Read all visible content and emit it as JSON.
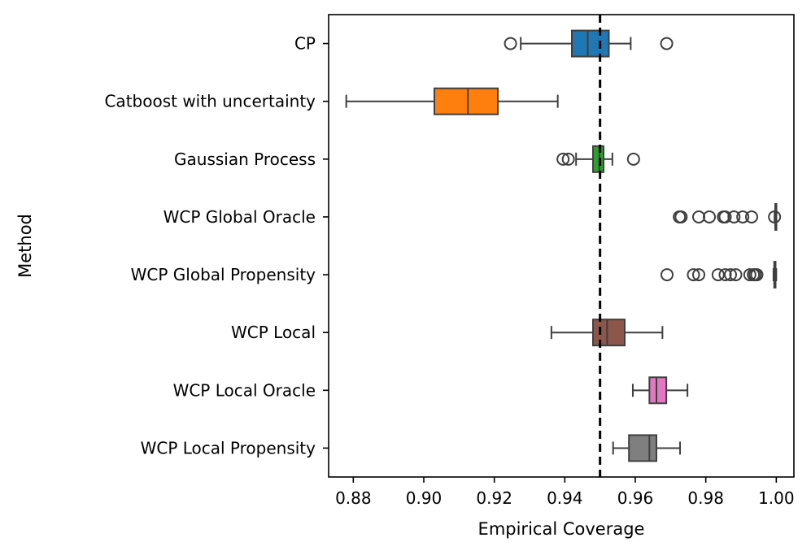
{
  "chart_data": {
    "type": "boxplot",
    "orientation": "horizontal",
    "xlabel": "Empirical Coverage",
    "ylabel": "Method",
    "xlim": [
      0.873,
      1.005
    ],
    "xticks": [
      0.88,
      0.9,
      0.92,
      0.94,
      0.96,
      0.98,
      1.0
    ],
    "xtick_labels": [
      "0.88",
      "0.90",
      "0.92",
      "0.94",
      "0.96",
      "0.98",
      "1.00"
    ],
    "reference_line": {
      "x": 0.95,
      "style": "dashed",
      "color": "#000000"
    },
    "grid": false,
    "categories": [
      "CP",
      "Catboost with uncertainty",
      "Gaussian Process",
      "WCP Global Oracle",
      "WCP Global Propensity",
      "WCP Local",
      "WCP Local Oracle",
      "WCP Local Propensity"
    ],
    "boxes": [
      {
        "name": "CP",
        "color": "#1f77b4",
        "whisker_low": 0.9275,
        "q1": 0.942,
        "median": 0.9465,
        "q3": 0.9525,
        "whisker_high": 0.9587,
        "outliers": [
          0.9246,
          0.9689
        ]
      },
      {
        "name": "Catboost with uncertainty",
        "color": "#ff7f0e",
        "whisker_low": 0.878,
        "q1": 0.903,
        "median": 0.9125,
        "q3": 0.921,
        "whisker_high": 0.938,
        "outliers": []
      },
      {
        "name": "Gaussian Process",
        "color": "#2ca02c",
        "whisker_low": 0.9432,
        "q1": 0.948,
        "median": 0.9498,
        "q3": 0.951,
        "whisker_high": 0.9535,
        "outliers": [
          0.9395,
          0.941,
          0.9595
        ]
      },
      {
        "name": "WCP Global Oracle",
        "color": "#d62728",
        "whisker_low": 0.9995,
        "q1": 0.9997,
        "median": 0.9998,
        "q3": 0.9999,
        "whisker_high": 1.0,
        "outliers": [
          0.9725,
          0.973,
          0.978,
          0.981,
          0.985,
          0.9855,
          0.988,
          0.9905,
          0.993,
          0.9995
        ]
      },
      {
        "name": "WCP Global Propensity",
        "color": "#9467bd",
        "whisker_low": 0.9992,
        "q1": 0.9994,
        "median": 0.9996,
        "q3": 0.9998,
        "whisker_high": 1.0,
        "outliers": [
          0.969,
          0.9765,
          0.978,
          0.9835,
          0.9855,
          0.987,
          0.9885,
          0.9925,
          0.9935,
          0.994,
          0.9945
        ]
      },
      {
        "name": "WCP Local",
        "color": "#8c564b",
        "whisker_low": 0.9362,
        "q1": 0.948,
        "median": 0.952,
        "q3": 0.957,
        "whisker_high": 0.9677,
        "outliers": []
      },
      {
        "name": "WCP Local Oracle",
        "color": "#e377c2",
        "whisker_low": 0.9593,
        "q1": 0.964,
        "median": 0.966,
        "q3": 0.9688,
        "whisker_high": 0.9748,
        "outliers": []
      },
      {
        "name": "WCP Local Propensity",
        "color": "#7f7f7f",
        "whisker_low": 0.9537,
        "q1": 0.9582,
        "median": 0.964,
        "q3": 0.966,
        "whisker_high": 0.9727,
        "outliers": []
      }
    ]
  }
}
